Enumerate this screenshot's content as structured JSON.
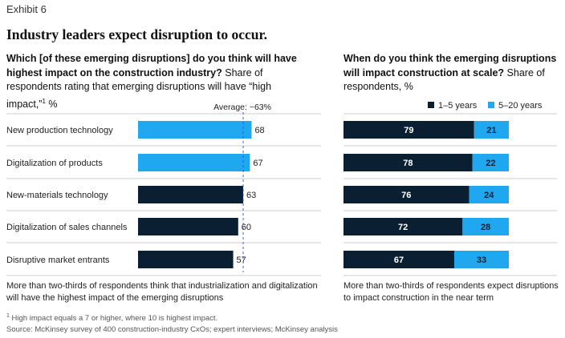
{
  "exhibit_label": "Exhibit 6",
  "headline": "Industry leaders expect disruption to occur.",
  "left_panel": {
    "question_bold": "Which [of these emerging disruptions] do you think will have highest impact on the construction industry?",
    "question_rest": " Share of respondents rating that emerging disruptions will have “high impact,”",
    "question_sup": "1",
    "question_unit": " %",
    "summary": "More than two-thirds of respondents think that industrialization and digitalization will have the highest impact of the emerging disruptions"
  },
  "right_panel": {
    "question_bold": "When do you think the emerging disruptions will impact construction at scale?",
    "question_rest": " Share of respondents, %",
    "summary": "More than two-thirds of respondents expect disruptions to impact construction in the near term"
  },
  "footnote": {
    "marker": "1",
    "text": " High impact equals a 7 or higher, where 10 is highest impact."
  },
  "source": "Source: McKinsey survey of 400 construction-industry CxOs; expert interviews; McKinsey analysis",
  "colors": {
    "dark": "#0b1f33",
    "light": "#1fa8f0",
    "divider": "#999999",
    "average_line": "#2251ff",
    "text": "#222222"
  },
  "chart_data": [
    {
      "type": "bar",
      "orientation": "horizontal",
      "title": "Which [of these emerging disruptions] do you think will have highest impact on the construction industry?",
      "categories": [
        "New production technology",
        "Digitalization of products",
        "New-materials technology",
        "Digitalization of sales channels",
        "Disruptive market entrants"
      ],
      "values": [
        68,
        67,
        63,
        60,
        57
      ],
      "highlighted": [
        true,
        true,
        false,
        false,
        false
      ],
      "reference_line": {
        "label": "Average: ~63%",
        "value": 63
      },
      "xlim": [
        0,
        100
      ],
      "unit": "%"
    },
    {
      "type": "bar",
      "orientation": "horizontal",
      "stacked": true,
      "title": "When do you think the emerging disruptions will impact construction at scale?",
      "categories": [
        "New production technology",
        "Digitalization of products",
        "New-materials technology",
        "Digitalization of sales channels",
        "Disruptive market entrants"
      ],
      "series": [
        {
          "name": "1–5 years",
          "values": [
            79,
            78,
            76,
            72,
            67
          ]
        },
        {
          "name": "5–20 years",
          "values": [
            21,
            22,
            24,
            28,
            33
          ]
        }
      ],
      "xlim": [
        0,
        100
      ],
      "legend": "top-right",
      "unit": "%"
    }
  ]
}
